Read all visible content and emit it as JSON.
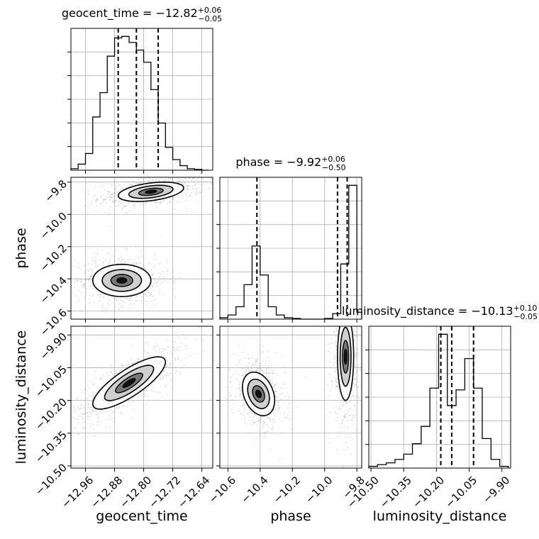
{
  "chart_data": {
    "type": "corner",
    "parameters": [
      "geocent_time",
      "phase",
      "luminosity_distance"
    ],
    "titles": {
      "geocent_time": {
        "name": "geocent_time",
        "median": "−12.82",
        "plus": "+0.06",
        "minus": "−0.05"
      },
      "phase": {
        "name": "phase",
        "median": "−9.92",
        "plus": "+0.06",
        "minus": "−0.50"
      },
      "luminosity_distance": {
        "name": "luminosity_distance",
        "median": "−10.13",
        "plus": "+0.10",
        "minus": "−0.05"
      }
    },
    "axis_labels": {
      "geocent_time": "geocent_time",
      "phase": "phase",
      "luminosity_distance": "luminosity_distance"
    },
    "ranges": {
      "geocent_time": [
        -13.0,
        -12.61
      ],
      "phase": [
        -10.65,
        -9.77
      ],
      "luminosity_distance": [
        -10.51,
        -9.86
      ]
    },
    "ticks": {
      "geocent_time": {
        "values": [
          -12.96,
          -12.88,
          -12.8,
          -12.72,
          -12.64
        ],
        "labels": [
          "−12.96",
          "−12.88",
          "−12.80",
          "−12.72",
          "−12.64"
        ]
      },
      "phase": {
        "values": [
          -10.6,
          -10.4,
          -10.2,
          -10.0,
          -9.8
        ],
        "labels": [
          "−10.6",
          "−10.4",
          "−10.2",
          "−10.0",
          "−9.8"
        ]
      },
      "luminosity_distance": {
        "values": [
          -10.5,
          -10.35,
          -10.2,
          -10.05,
          -9.9
        ],
        "labels": [
          "−10.50",
          "−10.35",
          "−10.20",
          "−10.05",
          "−9.90"
        ]
      }
    },
    "quantiles": {
      "geocent_time": [
        -12.87,
        -12.82,
        -12.76
      ],
      "phase": [
        -10.42,
        -9.92,
        -9.86
      ],
      "luminosity_distance": [
        -10.18,
        -10.13,
        -10.03
      ]
    },
    "histograms": {
      "geocent_time": {
        "edges": [
          -13.0,
          -12.98,
          -12.96,
          -12.94,
          -12.92,
          -12.9,
          -12.88,
          -12.86,
          -12.84,
          -12.82,
          -12.8,
          -12.78,
          -12.76,
          -12.74,
          -12.72,
          -12.7,
          -12.68,
          -12.66,
          -12.64,
          -12.62
        ],
        "counts": [
          1,
          4,
          11,
          35,
          51,
          75,
          87,
          88,
          84,
          79,
          71,
          53,
          31,
          15,
          7,
          3,
          1,
          0.5,
          0
        ]
      },
      "phase": {
        "edges": [
          -10.65,
          -10.6,
          -10.55,
          -10.5,
          -10.45,
          -10.4,
          -10.35,
          -10.3,
          -10.25,
          -10.2,
          -10.15,
          -10.1,
          -10.05,
          -10.0,
          -9.95,
          -9.9,
          -9.85,
          -9.8,
          -9.77
        ],
        "counts": [
          1,
          3,
          9,
          25,
          53,
          32,
          9,
          3,
          1,
          0.5,
          0,
          0,
          0,
          0.5,
          4,
          40,
          97,
          5
        ]
      },
      "luminosity_distance": {
        "edges": [
          -10.51,
          -10.47,
          -10.43,
          -10.39,
          -10.35,
          -10.31,
          -10.27,
          -10.23,
          -10.19,
          -10.15,
          -10.11,
          -10.07,
          -10.03,
          -9.99,
          -9.95,
          -9.91,
          -9.87
        ],
        "counts": [
          1,
          2,
          3,
          5,
          8,
          14,
          24,
          46,
          77,
          36,
          45,
          63,
          46,
          17,
          5,
          1
        ]
      }
    },
    "contours_2d": [
      {
        "x": "geocent_time",
        "y": "phase",
        "modes": [
          {
            "center": [
              -12.78,
              -9.86
            ],
            "spread": [
              0.045,
              0.03
            ],
            "corr": 0.4
          },
          {
            "center": [
              -12.86,
              -10.41
            ],
            "spread": [
              0.04,
              0.05
            ],
            "corr": 0.0
          }
        ]
      },
      {
        "x": "geocent_time",
        "y": "luminosity_distance",
        "modes": [
          {
            "center": [
              -12.84,
              -10.12
            ],
            "spread": [
              0.05,
              0.06
            ],
            "corr": 0.8
          }
        ]
      },
      {
        "x": "phase",
        "y": "luminosity_distance",
        "modes": [
          {
            "center": [
              -10.41,
              -10.17
            ],
            "spread": [
              0.05,
              0.05
            ],
            "corr": -0.3
          },
          {
            "center": [
              -9.87,
              -10.0
            ],
            "spread": [
              0.025,
              0.1
            ],
            "corr": 0.0
          }
        ]
      }
    ],
    "grid": true,
    "colors": {
      "line": "#000000",
      "grid": "#b0b0b0",
      "points": "#999999",
      "fill_dark": "#111111",
      "fill_mid": "#777777",
      "fill_light": "#cfcfcf"
    }
  }
}
